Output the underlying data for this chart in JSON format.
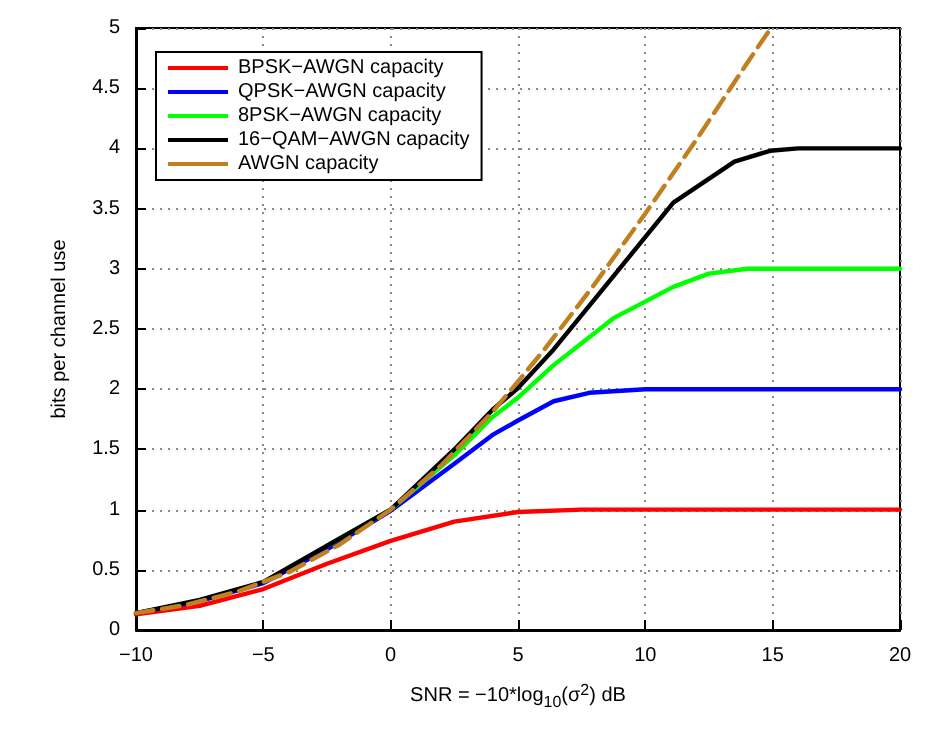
{
  "chart_data": {
    "type": "line",
    "xlabel": "SNR = −10*log$_{10}$(σ$^{2}$) dB",
    "ylabel": "bits per channel use",
    "xlim": [
      -10,
      20
    ],
    "xticks": [
      {
        "value": -10,
        "label": "−10"
      },
      {
        "value": -5,
        "label": "−5"
      },
      0,
      5,
      10,
      15,
      20
    ],
    "ylim": [
      0,
      5
    ],
    "yticks": [
      0,
      0.5,
      1,
      1.5,
      2,
      2.5,
      3,
      3.5,
      4,
      4.5,
      5
    ],
    "grid": true,
    "legend": "top left",
    "marker": "none",
    "series": [
      {
        "name": "BPSK−AWGN capacity",
        "color": "#ff0000",
        "line_style": "solid",
        "x": [
          -10,
          -7.5,
          -5,
          -2.5,
          0,
          2.5,
          5,
          7.5,
          10,
          20
        ],
        "values": [
          0.13,
          0.2,
          0.34,
          0.55,
          0.74,
          0.9,
          0.98,
          1.0,
          1.0,
          1.0
        ]
      },
      {
        "name": "QPSK−AWGN capacity",
        "color": "#0000ff",
        "line_style": "solid",
        "x": [
          -10,
          -7.5,
          -5,
          -2.5,
          0,
          2.5,
          4,
          5,
          6.4,
          7.8,
          10,
          20
        ],
        "values": [
          0.14,
          0.24,
          0.39,
          0.67,
          0.99,
          1.38,
          1.62,
          1.74,
          1.9,
          1.97,
          2.0,
          2.0
        ]
      },
      {
        "name": "8PSK−AWGN capacity",
        "color": "#00ff00",
        "line_style": "solid",
        "x": [
          -2.5,
          0,
          2.5,
          4,
          5,
          6.4,
          8.75,
          11.1,
          12.5,
          14,
          20
        ],
        "values": [
          0.7,
          1.0,
          1.45,
          1.77,
          1.93,
          2.2,
          2.59,
          2.85,
          2.96,
          3.0,
          3.0
        ]
      },
      {
        "name": "16−QAM−AWGN capacity",
        "color": "#000000",
        "line_style": "solid",
        "x": [
          -10,
          -7.5,
          -5,
          -2.5,
          0,
          2.5,
          4,
          5,
          6.4,
          8.75,
          11.1,
          13.5,
          14.9,
          16,
          20
        ],
        "values": [
          0.14,
          0.25,
          0.4,
          0.7,
          1.0,
          1.5,
          1.83,
          2.01,
          2.33,
          2.94,
          3.55,
          3.89,
          3.98,
          4.0,
          4.0
        ]
      },
      {
        "name": "AWGN capacity",
        "color": "#c08020",
        "line_style": "dashed",
        "x": [
          -10,
          -8,
          -6,
          -4,
          -2,
          0,
          2,
          4,
          6,
          8,
          10,
          12,
          14,
          14.9
        ],
        "values": [
          0.14,
          0.21,
          0.32,
          0.48,
          0.71,
          1.0,
          1.37,
          1.81,
          2.32,
          2.87,
          3.46,
          4.07,
          4.71,
          4.99
        ]
      }
    ]
  }
}
